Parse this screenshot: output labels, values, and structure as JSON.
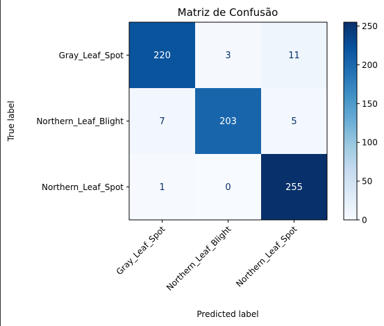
{
  "chart_data": {
    "type": "heatmap",
    "title": "Matriz de Confusão",
    "xlabel": "Predicted label",
    "ylabel": "True label",
    "x_categories": [
      "Gray_Leaf_Spot",
      "Northern_Leaf_Blight",
      "Northern_Leaf_Spot"
    ],
    "y_categories": [
      "Gray_Leaf_Spot",
      "Northern_Leaf_Blight",
      "Northern_Leaf_Spot"
    ],
    "values": [
      [
        220,
        3,
        11
      ],
      [
        7,
        203,
        5
      ],
      [
        1,
        0,
        255
      ]
    ],
    "colormap": "Blues",
    "colorbar": {
      "range": [
        0,
        255
      ],
      "ticks": [
        0,
        50,
        100,
        150,
        200,
        250
      ]
    },
    "grid": false
  }
}
